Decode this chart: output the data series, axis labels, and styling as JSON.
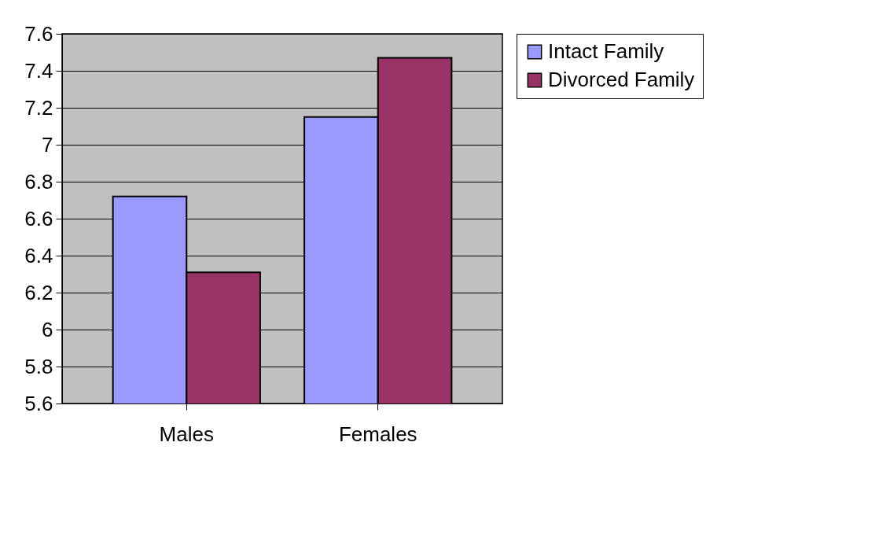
{
  "chart_data": {
    "type": "bar",
    "categories": [
      "Males",
      "Females"
    ],
    "series": [
      {
        "name": "Intact Family",
        "color": "#9999ff",
        "values": [
          6.72,
          7.15
        ]
      },
      {
        "name": "Divorced Family",
        "color": "#993366",
        "values": [
          6.31,
          7.47
        ]
      }
    ],
    "ylim": [
      5.6,
      7.6
    ],
    "yticks": [
      5.6,
      5.8,
      6,
      6.2,
      6.4,
      6.6,
      6.8,
      7,
      7.2,
      7.4,
      7.6
    ],
    "grid": "y",
    "legend": "right"
  }
}
